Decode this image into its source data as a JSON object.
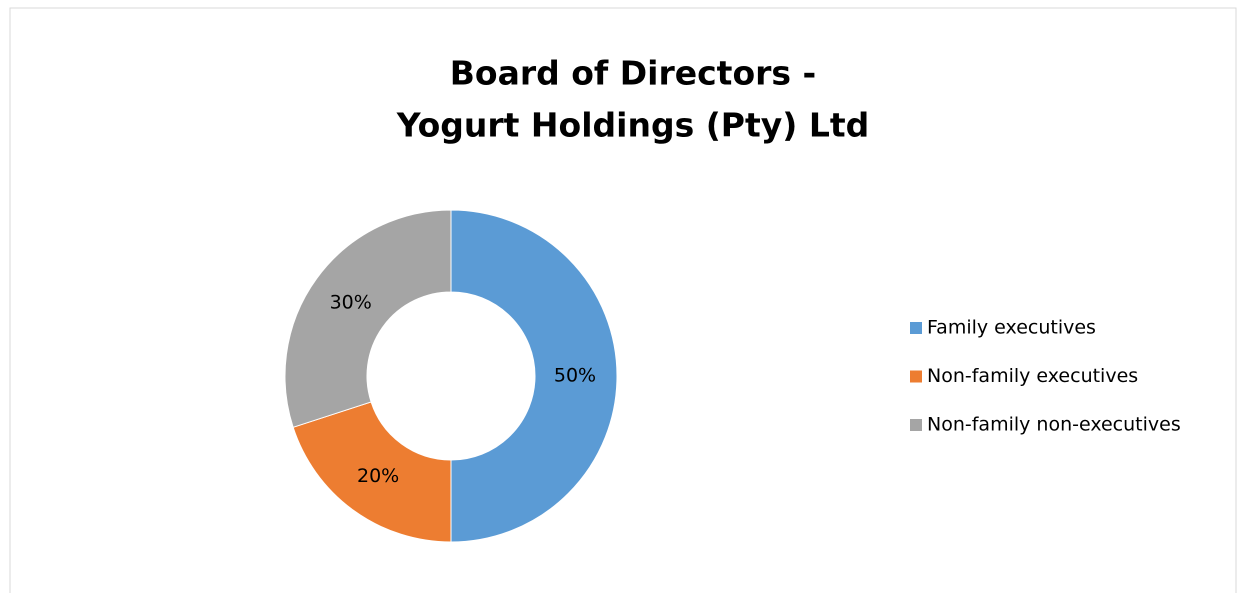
{
  "chart_data": {
    "type": "donut",
    "title": [
      "Board of Directors -",
      "Yogurt Holdings (Pty) Ltd"
    ],
    "categories": [
      "Family executives",
      "Non-family executives",
      "Non-family non-executives"
    ],
    "values": [
      50,
      20,
      30
    ],
    "value_labels": [
      "50%",
      "20%",
      "30%"
    ],
    "colors": [
      "#5b9bd5",
      "#ed7d31",
      "#a5a5a5"
    ],
    "legend": "right"
  }
}
